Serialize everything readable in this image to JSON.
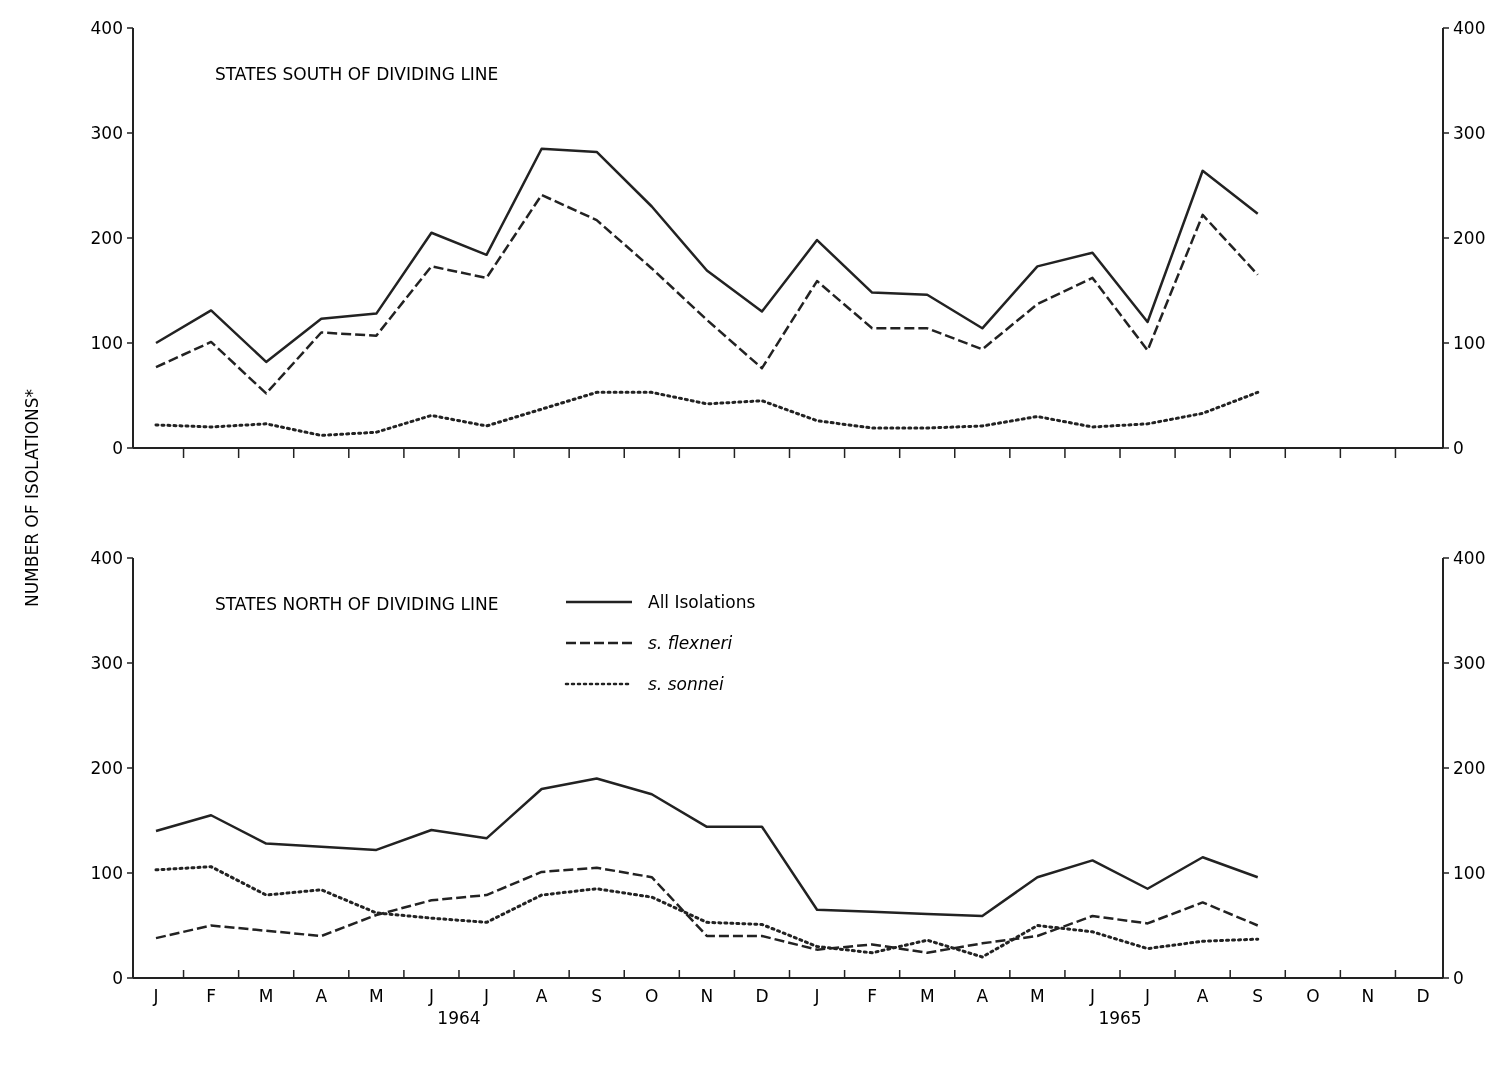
{
  "chart_data": [
    {
      "type": "line",
      "title": "STATES SOUTH OF DIVIDING LINE",
      "ylabel": "NUMBER OF ISOLATIONS*",
      "categories": [
        null,
        null,
        null,
        null,
        null,
        null,
        null,
        null,
        null,
        null,
        null,
        null,
        null,
        null,
        null,
        null,
        null,
        null,
        null,
        null,
        null,
        null,
        null,
        null
      ],
      "ylim": [
        0,
        400
      ],
      "yticks": [
        0,
        100,
        200,
        300,
        400
      ],
      "y2lim": [
        0,
        400
      ],
      "y2ticks": [
        0,
        100,
        200,
        300,
        400
      ],
      "tick_labels": "y",
      "grid": false,
      "legend": false,
      "series": [
        {
          "color": "#222222",
          "line_style": "solid",
          "values": [
            100,
            131,
            82,
            123,
            128,
            205,
            184,
            285,
            282,
            230,
            169,
            130,
            198,
            148,
            146,
            114,
            173,
            186,
            120,
            264,
            223,
            null,
            null,
            null
          ]
        },
        {
          "color": "#222222",
          "line_style": "dashed",
          "values": [
            77,
            101,
            52,
            110,
            107,
            173,
            162,
            241,
            217,
            171,
            122,
            76,
            159,
            114,
            114,
            94,
            137,
            162,
            93,
            222,
            165,
            null,
            null,
            null
          ]
        },
        {
          "color": "#222222",
          "line_style": "dotted",
          "values": [
            22,
            20,
            23,
            12,
            15,
            31,
            21,
            37,
            53,
            53,
            42,
            45,
            26,
            19,
            19,
            21,
            30,
            20,
            23,
            33,
            53,
            null,
            null,
            null
          ]
        }
      ]
    },
    {
      "type": "line",
      "title": "STATES NORTH OF DIVIDING LINE",
      "categories": [
        "J",
        "F",
        "M",
        "A",
        "M",
        "J",
        "J",
        "A",
        "S",
        "O",
        "N",
        "D",
        "J",
        "F",
        "M",
        "A",
        "M",
        "J",
        "J",
        "A",
        "S",
        "O",
        "N",
        "D"
      ],
      "ylim": [
        0,
        400
      ],
      "yticks": [
        0,
        100,
        200,
        300,
        400
      ],
      "y2lim": [
        0,
        400
      ],
      "y2ticks": [
        0,
        100,
        200,
        300,
        400
      ],
      "grid": false,
      "legend": "top",
      "annotations": [
        "1964",
        "1965"
      ],
      "series": [
        {
          "name": "All Isolations",
          "color": "#222222",
          "line_style": "solid",
          "values": [
            140,
            155,
            128,
            125,
            122,
            141,
            133,
            180,
            190,
            175,
            144,
            144,
            65,
            63,
            61,
            59,
            96,
            112,
            85,
            115,
            96,
            null,
            null,
            null
          ]
        },
        {
          "name": "s. flexneri",
          "color": "#222222",
          "line_style": "dashed",
          "values": [
            38,
            50,
            45,
            40,
            60,
            74,
            79,
            101,
            105,
            96,
            40,
            40,
            27,
            32,
            24,
            33,
            40,
            59,
            52,
            72,
            50,
            null,
            null,
            null
          ]
        },
        {
          "name": "s. sonnei",
          "color": "#222222",
          "line_style": "dotted",
          "values": [
            103,
            106,
            79,
            84,
            62,
            57,
            53,
            79,
            85,
            77,
            53,
            51,
            30,
            24,
            36,
            20,
            50,
            44,
            28,
            35,
            37,
            null,
            null,
            null
          ]
        }
      ]
    }
  ]
}
